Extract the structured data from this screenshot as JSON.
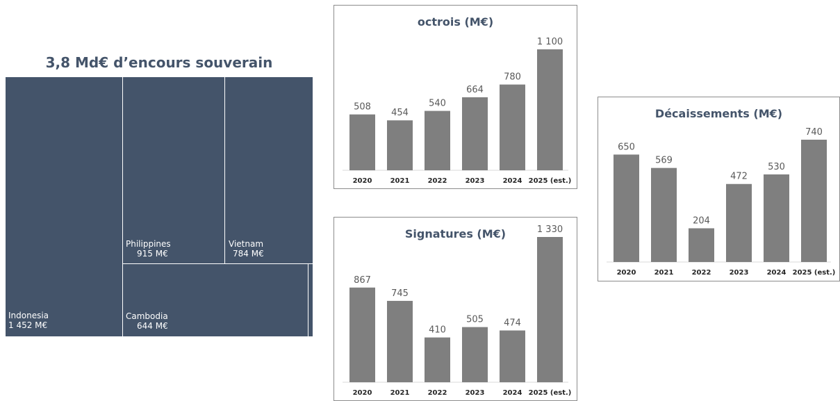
{
  "treemap": {
    "title": "3,8 Md€ d’encours souverain",
    "tiles": [
      {
        "name": "Indonesia",
        "value": "1 452 M€"
      },
      {
        "name": "Philippines",
        "value": "915 M€"
      },
      {
        "name": "Vietnam",
        "value": "784 M€"
      },
      {
        "name": "Cambodia",
        "value": "644 M€"
      }
    ]
  },
  "colors": {
    "tile": "#44546a",
    "bar": "#7f7f7f",
    "title": "#44546a",
    "axis": "#d9d9d9"
  },
  "chart_data": [
    {
      "type": "treemap",
      "title": "3,8 Md€ d’encours souverain",
      "categories": [
        "Indonesia",
        "Philippines",
        "Vietnam",
        "Cambodia"
      ],
      "values": [
        1452,
        915,
        784,
        644
      ],
      "unit": "M€"
    },
    {
      "type": "bar",
      "title": "octrois (M€)",
      "categories": [
        "2020",
        "2021",
        "2022",
        "2023",
        "2024",
        "2025 (est.)"
      ],
      "values": [
        508,
        454,
        540,
        664,
        780,
        1100
      ],
      "value_labels": [
        "508",
        "454",
        "540",
        "664",
        "780",
        "1 100"
      ],
      "ylim": [
        0,
        1200
      ]
    },
    {
      "type": "bar",
      "title": "Signatures (M€)",
      "categories": [
        "2020",
        "2021",
        "2022",
        "2023",
        "2024",
        "2025 (est.)"
      ],
      "values": [
        867,
        745,
        410,
        505,
        474,
        1330
      ],
      "value_labels": [
        "867",
        "745",
        "410",
        "505",
        "474",
        "1 330"
      ],
      "ylim": [
        0,
        1450
      ]
    },
    {
      "type": "bar",
      "title": "Décaissements (M€)",
      "categories": [
        "2020",
        "2021",
        "2022",
        "2023",
        "2024",
        "2025 (est.)"
      ],
      "values": [
        650,
        569,
        204,
        472,
        530,
        740
      ],
      "value_labels": [
        "650",
        "569",
        "204",
        "472",
        "530",
        "740"
      ],
      "ylim": [
        0,
        810
      ]
    }
  ]
}
